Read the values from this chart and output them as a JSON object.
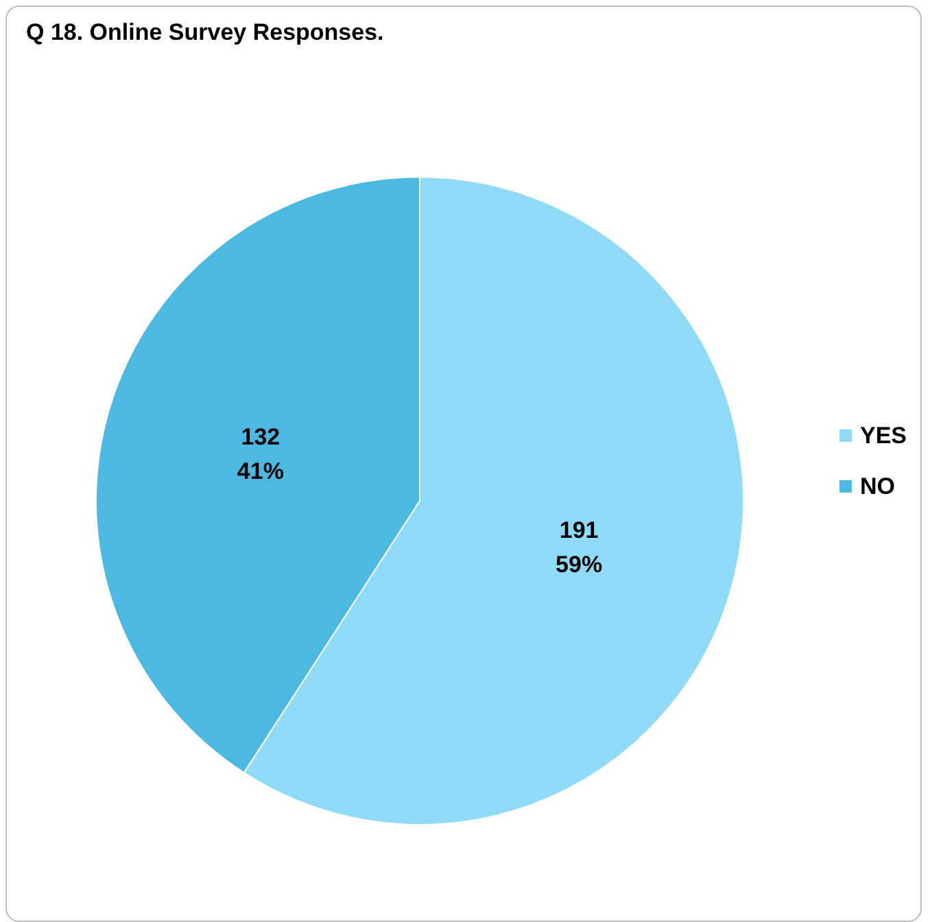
{
  "chart_data": {
    "type": "pie",
    "title": "Q 18. Online Survey Responses.",
    "categories": [
      "YES",
      "NO"
    ],
    "values": [
      191,
      132
    ],
    "colors": [
      "#8fdbf7",
      "#4cb9e2"
    ],
    "value_labels": [
      "191\n59%",
      "132\n41%"
    ],
    "legend": "right"
  }
}
